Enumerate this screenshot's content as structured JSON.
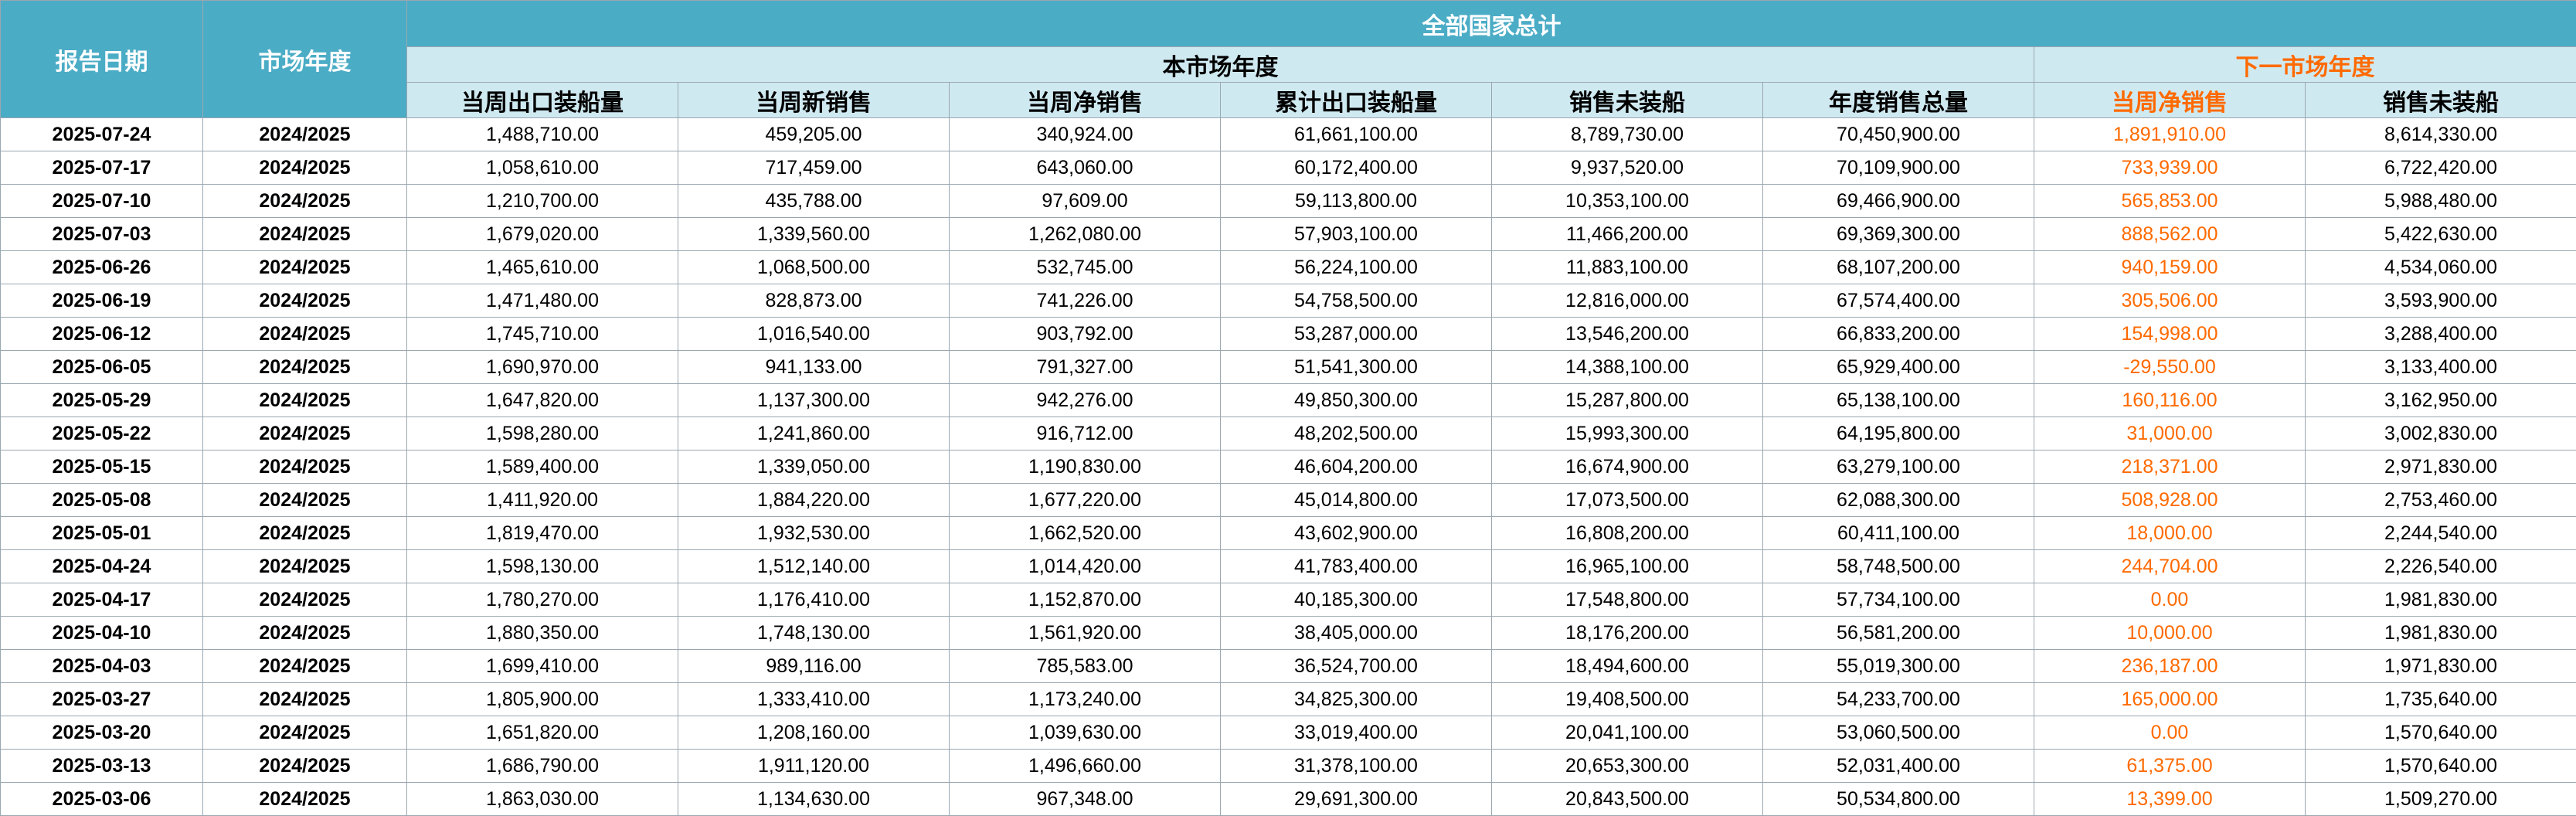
{
  "header": {
    "date": "报告日期",
    "season": "市场年度",
    "title": "全部国家总计",
    "current_group": "本市场年度",
    "next_group": "下一市场年度",
    "columns": [
      "当周出口装船量",
      "当周新销售",
      "当周净销售",
      "累计出口装船量",
      "销售未装船",
      "年度销售总量",
      "当周净销售",
      "销售未装船"
    ]
  },
  "table": {
    "rows": [
      [
        "2025-07-24",
        "2024/2025",
        "1,488,710.00",
        "459,205.00",
        "340,924.00",
        "61,661,100.00",
        "8,789,730.00",
        "70,450,900.00",
        "1,891,910.00",
        "8,614,330.00"
      ],
      [
        "2025-07-17",
        "2024/2025",
        "1,058,610.00",
        "717,459.00",
        "643,060.00",
        "60,172,400.00",
        "9,937,520.00",
        "70,109,900.00",
        "733,939.00",
        "6,722,420.00"
      ],
      [
        "2025-07-10",
        "2024/2025",
        "1,210,700.00",
        "435,788.00",
        "97,609.00",
        "59,113,800.00",
        "10,353,100.00",
        "69,466,900.00",
        "565,853.00",
        "5,988,480.00"
      ],
      [
        "2025-07-03",
        "2024/2025",
        "1,679,020.00",
        "1,339,560.00",
        "1,262,080.00",
        "57,903,100.00",
        "11,466,200.00",
        "69,369,300.00",
        "888,562.00",
        "5,422,630.00"
      ],
      [
        "2025-06-26",
        "2024/2025",
        "1,465,610.00",
        "1,068,500.00",
        "532,745.00",
        "56,224,100.00",
        "11,883,100.00",
        "68,107,200.00",
        "940,159.00",
        "4,534,060.00"
      ],
      [
        "2025-06-19",
        "2024/2025",
        "1,471,480.00",
        "828,873.00",
        "741,226.00",
        "54,758,500.00",
        "12,816,000.00",
        "67,574,400.00",
        "305,506.00",
        "3,593,900.00"
      ],
      [
        "2025-06-12",
        "2024/2025",
        "1,745,710.00",
        "1,016,540.00",
        "903,792.00",
        "53,287,000.00",
        "13,546,200.00",
        "66,833,200.00",
        "154,998.00",
        "3,288,400.00"
      ],
      [
        "2025-06-05",
        "2024/2025",
        "1,690,970.00",
        "941,133.00",
        "791,327.00",
        "51,541,300.00",
        "14,388,100.00",
        "65,929,400.00",
        "-29,550.00",
        "3,133,400.00"
      ],
      [
        "2025-05-29",
        "2024/2025",
        "1,647,820.00",
        "1,137,300.00",
        "942,276.00",
        "49,850,300.00",
        "15,287,800.00",
        "65,138,100.00",
        "160,116.00",
        "3,162,950.00"
      ],
      [
        "2025-05-22",
        "2024/2025",
        "1,598,280.00",
        "1,241,860.00",
        "916,712.00",
        "48,202,500.00",
        "15,993,300.00",
        "64,195,800.00",
        "31,000.00",
        "3,002,830.00"
      ],
      [
        "2025-05-15",
        "2024/2025",
        "1,589,400.00",
        "1,339,050.00",
        "1,190,830.00",
        "46,604,200.00",
        "16,674,900.00",
        "63,279,100.00",
        "218,371.00",
        "2,971,830.00"
      ],
      [
        "2025-05-08",
        "2024/2025",
        "1,411,920.00",
        "1,884,220.00",
        "1,677,220.00",
        "45,014,800.00",
        "17,073,500.00",
        "62,088,300.00",
        "508,928.00",
        "2,753,460.00"
      ],
      [
        "2025-05-01",
        "2024/2025",
        "1,819,470.00",
        "1,932,530.00",
        "1,662,520.00",
        "43,602,900.00",
        "16,808,200.00",
        "60,411,100.00",
        "18,000.00",
        "2,244,540.00"
      ],
      [
        "2025-04-24",
        "2024/2025",
        "1,598,130.00",
        "1,512,140.00",
        "1,014,420.00",
        "41,783,400.00",
        "16,965,100.00",
        "58,748,500.00",
        "244,704.00",
        "2,226,540.00"
      ],
      [
        "2025-04-17",
        "2024/2025",
        "1,780,270.00",
        "1,176,410.00",
        "1,152,870.00",
        "40,185,300.00",
        "17,548,800.00",
        "57,734,100.00",
        "0.00",
        "1,981,830.00"
      ],
      [
        "2025-04-10",
        "2024/2025",
        "1,880,350.00",
        "1,748,130.00",
        "1,561,920.00",
        "38,405,000.00",
        "18,176,200.00",
        "56,581,200.00",
        "10,000.00",
        "1,981,830.00"
      ],
      [
        "2025-04-03",
        "2024/2025",
        "1,699,410.00",
        "989,116.00",
        "785,583.00",
        "36,524,700.00",
        "18,494,600.00",
        "55,019,300.00",
        "236,187.00",
        "1,971,830.00"
      ],
      [
        "2025-03-27",
        "2024/2025",
        "1,805,900.00",
        "1,333,410.00",
        "1,173,240.00",
        "34,825,300.00",
        "19,408,500.00",
        "54,233,700.00",
        "165,000.00",
        "1,735,640.00"
      ],
      [
        "2025-03-20",
        "2024/2025",
        "1,651,820.00",
        "1,208,160.00",
        "1,039,630.00",
        "33,019,400.00",
        "20,041,100.00",
        "53,060,500.00",
        "0.00",
        "1,570,640.00"
      ],
      [
        "2025-03-13",
        "2024/2025",
        "1,686,790.00",
        "1,911,120.00",
        "1,496,660.00",
        "31,378,100.00",
        "20,653,300.00",
        "52,031,400.00",
        "61,375.00",
        "1,570,640.00"
      ],
      [
        "2025-03-06",
        "2024/2025",
        "1,863,030.00",
        "1,134,630.00",
        "967,348.00",
        "29,691,300.00",
        "20,843,500.00",
        "50,534,800.00",
        "13,399.00",
        "1,509,270.00"
      ]
    ]
  }
}
